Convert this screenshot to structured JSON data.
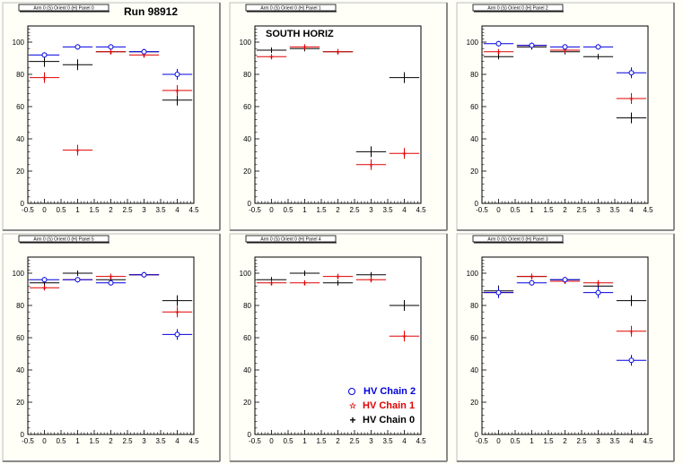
{
  "header": {
    "run_label": "Run 98912",
    "region_label": "SOUTH HORIZ"
  },
  "legend": [
    {
      "label": "HV Chain 2",
      "color": "#0000e0",
      "marker": "open-circle"
    },
    {
      "label": "HV Chain 1",
      "color": "#e00000",
      "marker": "open-star"
    },
    {
      "label": "HV Chain 0",
      "color": "#000000",
      "marker": "plus"
    }
  ],
  "chart_data": [
    {
      "type": "scatter",
      "title": "Arm 0 (S) Orient 0 (H) Panel 0",
      "xlim": [
        -0.5,
        4.5
      ],
      "ylim": [
        0,
        110
      ],
      "xticks": [
        "-0.5",
        "0",
        "0.5",
        "1",
        "1.5",
        "2",
        "2.5",
        "3",
        "3.5",
        "4",
        "4.5"
      ],
      "yticks": [
        "0",
        "20",
        "40",
        "60",
        "80",
        "100"
      ],
      "series": [
        {
          "name": "HV Chain 2",
          "x": [
            0,
            1,
            2,
            3,
            4
          ],
          "y": [
            92,
            97,
            97,
            94,
            80
          ]
        },
        {
          "name": "HV Chain 1",
          "x": [
            0,
            1,
            2,
            3,
            4
          ],
          "y": [
            78,
            33,
            94,
            92,
            70
          ]
        },
        {
          "name": "HV Chain 0",
          "x": [
            0,
            1,
            2,
            3,
            4
          ],
          "y": [
            88,
            86,
            94,
            94,
            64
          ]
        }
      ]
    },
    {
      "type": "scatter",
      "title": "Arm 0 (S) Orient 0 (H) Panel 1",
      "xlim": [
        -0.5,
        4.5
      ],
      "ylim": [
        0,
        110
      ],
      "xticks": [
        "-0.5",
        "0",
        "0.5",
        "1",
        "1.5",
        "2",
        "2.5",
        "3",
        "3.5",
        "4",
        "4.5"
      ],
      "yticks": [
        "0",
        "20",
        "40",
        "60",
        "80",
        "100"
      ],
      "series": [
        {
          "name": "HV Chain 2",
          "x": [],
          "y": []
        },
        {
          "name": "HV Chain 1",
          "x": [
            0,
            1,
            2,
            3,
            4
          ],
          "y": [
            91,
            97,
            94,
            24,
            31
          ]
        },
        {
          "name": "HV Chain 0",
          "x": [
            0,
            1,
            2,
            3,
            4
          ],
          "y": [
            95,
            96,
            94,
            32,
            78
          ]
        }
      ]
    },
    {
      "type": "scatter",
      "title": "Arm 0 (S) Orient 0 (H) Panel 2",
      "xlim": [
        -0.5,
        4.5
      ],
      "ylim": [
        0,
        110
      ],
      "xticks": [
        "-0.5",
        "0",
        "0.5",
        "1",
        "1.5",
        "2",
        "2.5",
        "3",
        "3.5",
        "4",
        "4.5"
      ],
      "yticks": [
        "0",
        "20",
        "40",
        "60",
        "80",
        "100"
      ],
      "series": [
        {
          "name": "HV Chain 2",
          "x": [
            0,
            1,
            2,
            3,
            4
          ],
          "y": [
            99,
            98,
            97,
            97,
            81
          ]
        },
        {
          "name": "HV Chain 1",
          "x": [
            0,
            1,
            2,
            3,
            4
          ],
          "y": [
            94,
            98,
            95,
            null,
            65
          ]
        },
        {
          "name": "HV Chain 0",
          "x": [
            0,
            1,
            2,
            3,
            4
          ],
          "y": [
            91,
            97,
            94,
            91,
            53
          ]
        }
      ]
    },
    {
      "type": "scatter",
      "title": "Arm 0 (S) Orient 0 (H) Panel 5",
      "xlim": [
        -0.5,
        4.5
      ],
      "ylim": [
        0,
        110
      ],
      "xticks": [
        "-0.5",
        "0",
        "0.5",
        "1",
        "1.5",
        "2",
        "2.5",
        "3",
        "3.5",
        "4",
        "4.5"
      ],
      "yticks": [
        "0",
        "20",
        "40",
        "60",
        "80",
        "100"
      ],
      "series": [
        {
          "name": "HV Chain 2",
          "x": [
            0,
            1,
            2,
            3,
            4
          ],
          "y": [
            96,
            96,
            94,
            99,
            62
          ]
        },
        {
          "name": "HV Chain 1",
          "x": [
            0,
            1,
            2,
            3,
            4
          ],
          "y": [
            91,
            96,
            98,
            99,
            76
          ]
        },
        {
          "name": "HV Chain 0",
          "x": [
            0,
            1,
            2,
            3,
            4
          ],
          "y": [
            94,
            100,
            96,
            99,
            83
          ]
        }
      ]
    },
    {
      "type": "scatter",
      "title": "Arm 0 (S) Orient 0 (H) Panel 4",
      "xlim": [
        -0.5,
        4.5
      ],
      "ylim": [
        0,
        110
      ],
      "xticks": [
        "-0.5",
        "0",
        "0.5",
        "1",
        "1.5",
        "2",
        "2.5",
        "3",
        "3.5",
        "4",
        "4.5"
      ],
      "yticks": [
        "0",
        "20",
        "40",
        "60",
        "80",
        "100"
      ],
      "series": [
        {
          "name": "HV Chain 2",
          "x": [],
          "y": []
        },
        {
          "name": "HV Chain 1",
          "x": [
            0,
            1,
            2,
            3,
            4
          ],
          "y": [
            94,
            94,
            98,
            96,
            61
          ]
        },
        {
          "name": "HV Chain 0",
          "x": [
            0,
            1,
            2,
            3,
            4
          ],
          "y": [
            96,
            100,
            94,
            99,
            80
          ]
        }
      ]
    },
    {
      "type": "scatter",
      "title": "Arm 0 (S) Orient 0 (H) Panel 3",
      "xlim": [
        -0.5,
        4.5
      ],
      "ylim": [
        0,
        110
      ],
      "xticks": [
        "-0.5",
        "0",
        "0.5",
        "1",
        "1.5",
        "2",
        "2.5",
        "3",
        "3.5",
        "4",
        "4.5"
      ],
      "yticks": [
        "0",
        "20",
        "40",
        "60",
        "80",
        "100"
      ],
      "series": [
        {
          "name": "HV Chain 2",
          "x": [
            0,
            1,
            2,
            3,
            4
          ],
          "y": [
            88,
            94,
            96,
            88,
            46
          ]
        },
        {
          "name": "HV Chain 1",
          "x": [
            0,
            1,
            2,
            3,
            4
          ],
          "y": [
            88,
            98,
            95,
            94,
            64
          ]
        },
        {
          "name": "HV Chain 0",
          "x": [
            0,
            1,
            2,
            3,
            4
          ],
          "y": [
            89,
            98,
            96,
            92,
            83
          ]
        }
      ]
    }
  ]
}
